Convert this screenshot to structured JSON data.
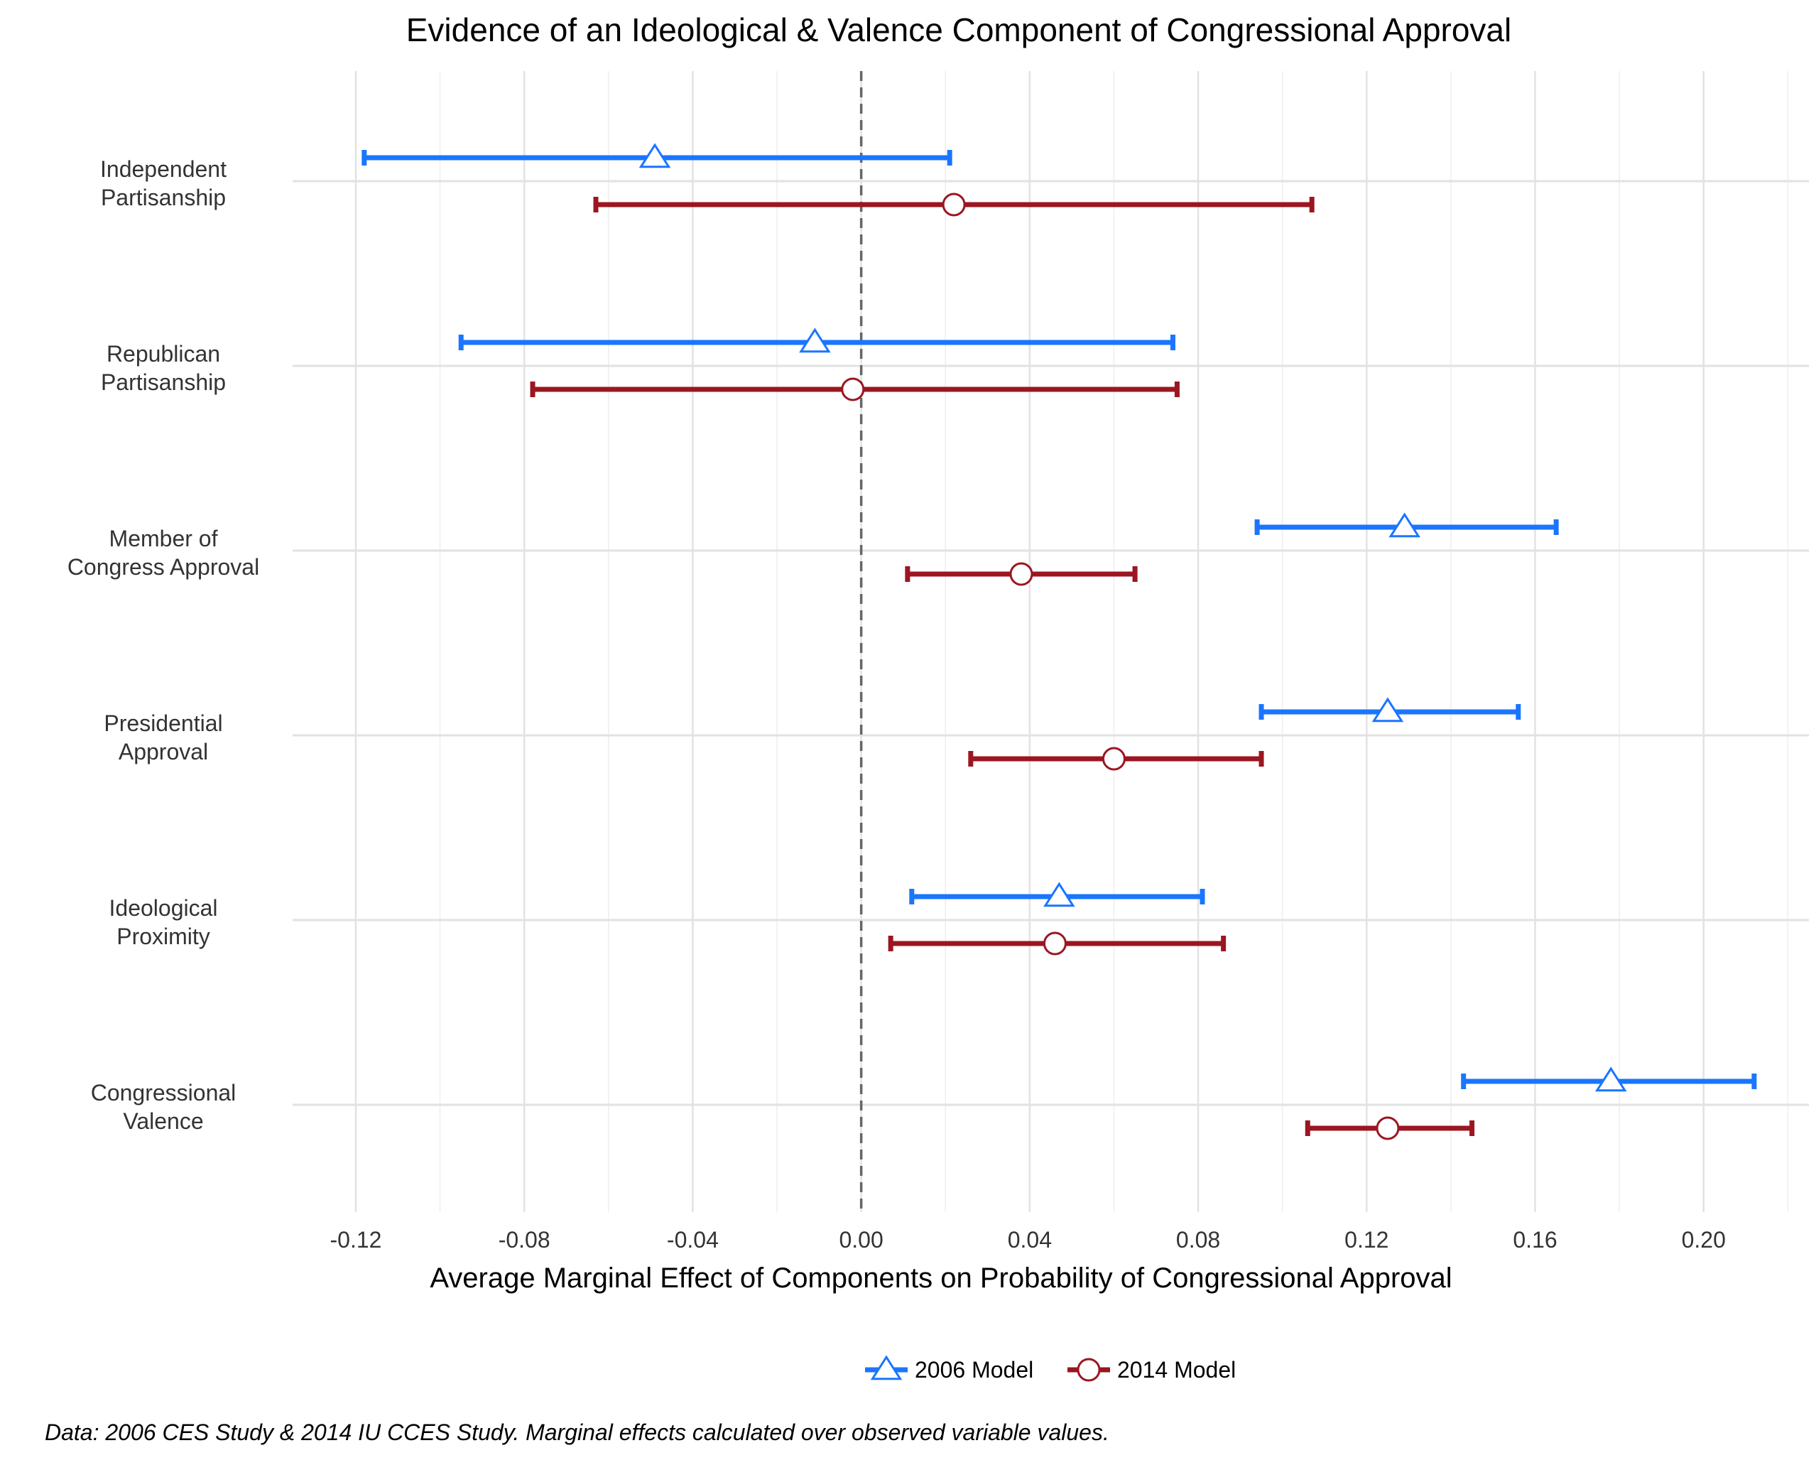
{
  "chart_data": {
    "type": "dot-and-whisker",
    "title": "Evidence of an Ideological & Valence Component of Congressional Approval",
    "xlabel": "Average Marginal Effect of Components on Probability of Congressional Approval",
    "ylabel": "",
    "xlim": [
      -0.135,
      0.225
    ],
    "x_ticks": [
      "-0.12",
      "-0.08",
      "-0.04",
      "0.00",
      "0.04",
      "0.08",
      "0.12",
      "0.16",
      "0.20"
    ],
    "x_tick_values": [
      -0.12,
      -0.08,
      -0.04,
      0.0,
      0.04,
      0.08,
      0.12,
      0.16,
      0.2
    ],
    "reference_line": 0.0,
    "grid": true,
    "legend_position": "bottom",
    "categories": [
      [
        "Independent",
        "Partisanship"
      ],
      [
        "Republican",
        "Partisanship"
      ],
      [
        "Member of",
        "Congress Approval"
      ],
      [
        "Presidential",
        "Approval"
      ],
      [
        "Ideological",
        "Proximity"
      ],
      [
        "Congressional",
        "Valence"
      ]
    ],
    "series": [
      {
        "name": "2006 Model",
        "color": "#1a75ff",
        "marker": "triangle",
        "points": [
          {
            "estimate": -0.049,
            "low": -0.118,
            "high": 0.021
          },
          {
            "estimate": -0.011,
            "low": -0.095,
            "high": 0.074
          },
          {
            "estimate": 0.129,
            "low": 0.094,
            "high": 0.165
          },
          {
            "estimate": 0.125,
            "low": 0.095,
            "high": 0.156
          },
          {
            "estimate": 0.047,
            "low": 0.012,
            "high": 0.081
          },
          {
            "estimate": 0.178,
            "low": 0.143,
            "high": 0.212
          }
        ]
      },
      {
        "name": "2014 Model",
        "color": "#9b1620",
        "marker": "circle",
        "points": [
          {
            "estimate": 0.022,
            "low": -0.063,
            "high": 0.107
          },
          {
            "estimate": -0.002,
            "low": -0.078,
            "high": 0.075
          },
          {
            "estimate": 0.038,
            "low": 0.011,
            "high": 0.065
          },
          {
            "estimate": 0.06,
            "low": 0.026,
            "high": 0.095
          },
          {
            "estimate": 0.046,
            "low": 0.007,
            "high": 0.086
          },
          {
            "estimate": 0.125,
            "low": 0.106,
            "high": 0.145
          }
        ]
      }
    ],
    "caption": "Data: 2006 CES Study & 2014 IU CCES Study. Marginal effects calculated over observed variable values."
  }
}
